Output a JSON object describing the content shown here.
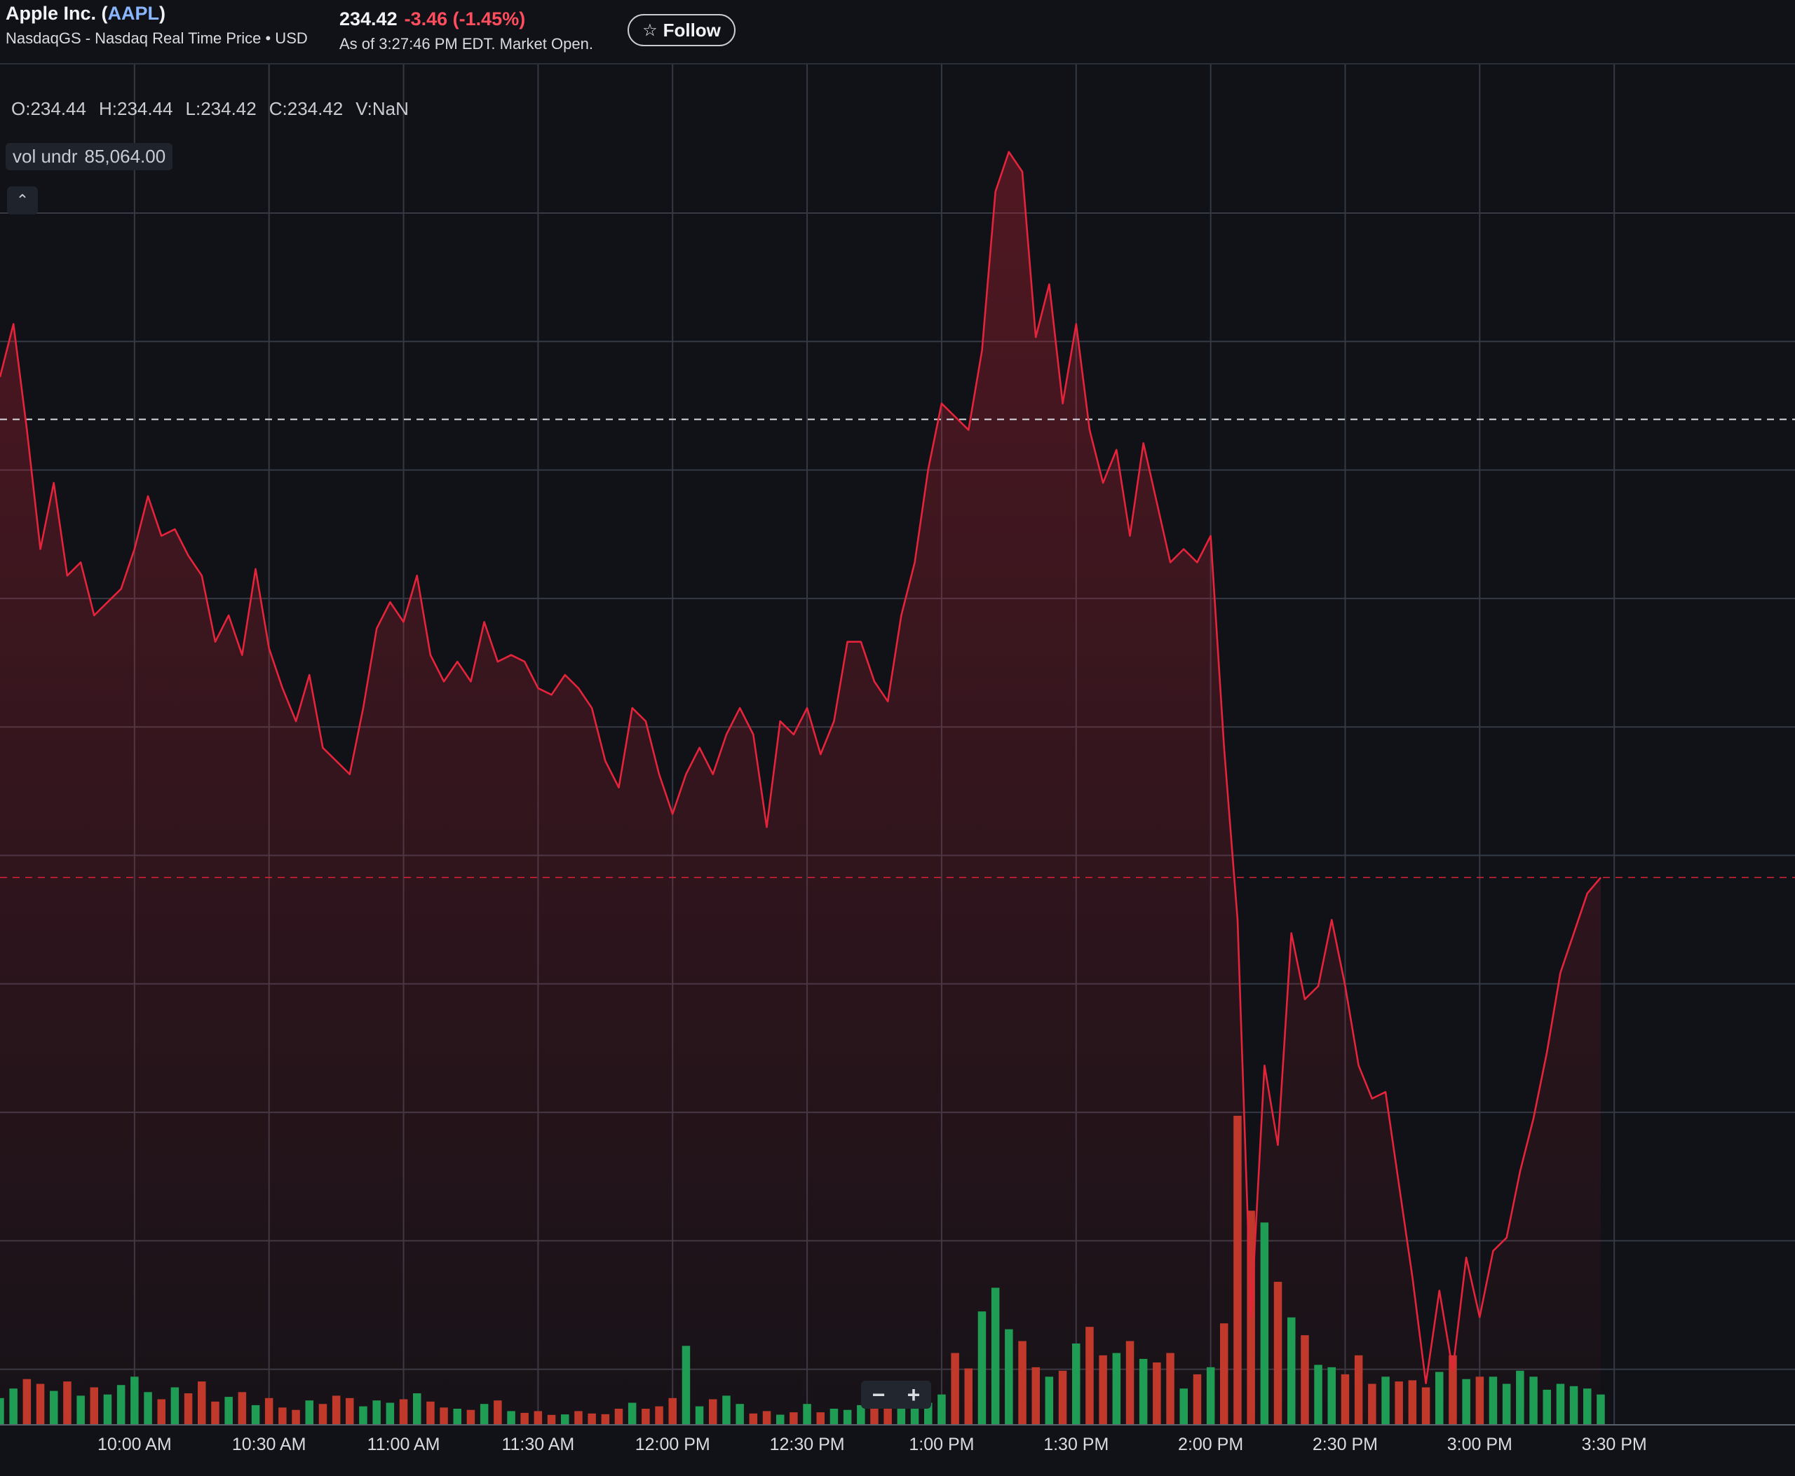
{
  "header": {
    "company_prefix": "Apple Inc. (",
    "symbol": "AAPL",
    "company_suffix": ")",
    "exchange_line": "NasdaqGS - Nasdaq Real Time Price • USD",
    "price": "234.42",
    "change": "-3.46",
    "change_pct": "(-1.45%)",
    "as_of": "As of 3:27:46 PM EDT. Market Open.",
    "follow_label": "Follow",
    "follow_icon": "star-outline-icon"
  },
  "legend": {
    "open": "O:234.44",
    "high": "H:234.44",
    "low": "L:234.42",
    "close": "C:234.42",
    "volume": "V:NaN",
    "vol_label": "vol undr",
    "vol_value": "85,064.00",
    "collapse_icon": "chevron-up-icon"
  },
  "zoom": {
    "minus": "−",
    "plus": "+"
  },
  "colors": {
    "background": "#101217",
    "price_line": "#e5243b",
    "volume_up": "#1f9d55",
    "volume_down": "#c0392b",
    "grid": "#343944",
    "prev_close_line": "#d8dbe0",
    "current_price_line": "#e5243b"
  },
  "chart_data": {
    "type": "line",
    "series": [
      {
        "time": [
          "9:30 AM",
          "9:33 AM",
          "9:36 AM",
          "9:39 AM",
          "9:42 AM",
          "9:45 AM",
          "9:48 AM",
          "9:51 AM",
          "9:54 AM",
          "9:57 AM",
          "10:00 AM",
          "10:03 AM",
          "10:06 AM",
          "10:09 AM",
          "10:12 AM",
          "10:15 AM",
          "10:18 AM",
          "10:21 AM",
          "10:24 AM",
          "10:27 AM",
          "10:30 AM",
          "10:33 AM",
          "10:36 AM",
          "10:39 AM",
          "10:42 AM",
          "10:45 AM",
          "10:48 AM",
          "10:51 AM",
          "10:54 AM",
          "10:57 AM",
          "11:00 AM",
          "11:03 AM",
          "11:06 AM",
          "11:09 AM",
          "11:12 AM",
          "11:15 AM",
          "11:18 AM",
          "11:21 AM",
          "11:24 AM",
          "11:27 AM",
          "11:30 AM",
          "11:33 AM",
          "11:36 AM",
          "11:39 AM",
          "11:42 AM",
          "11:45 AM",
          "11:48 AM",
          "11:51 AM",
          "11:54 AM",
          "11:57 AM",
          "12:00 PM",
          "12:03 PM",
          "12:06 PM",
          "12:09 PM",
          "12:12 PM",
          "12:15 PM",
          "12:18 PM",
          "12:21 PM",
          "12:24 PM",
          "12:27 PM",
          "12:30 PM",
          "12:33 PM",
          "12:36 PM",
          "12:39 PM",
          "12:42 PM",
          "12:45 PM",
          "12:48 PM",
          "12:51 PM",
          "12:54 PM",
          "12:57 PM",
          "1:00 PM",
          "1:03 PM",
          "1:06 PM",
          "1:09 PM",
          "1:12 PM",
          "1:15 PM",
          "1:18 PM",
          "1:21 PM",
          "1:24 PM",
          "1:27 PM",
          "1:30 PM",
          "1:33 PM",
          "1:36 PM",
          "1:39 PM",
          "1:42 PM",
          "1:45 PM",
          "1:48 PM",
          "1:51 PM",
          "1:54 PM",
          "1:57 PM",
          "2:00 PM",
          "2:03 PM",
          "2:06 PM",
          "2:09 PM",
          "2:12 PM",
          "2:15 PM",
          "2:18 PM",
          "2:21 PM",
          "2:24 PM",
          "2:27 PM",
          "2:30 PM",
          "2:33 PM",
          "2:36 PM",
          "2:39 PM",
          "2:42 PM",
          "2:45 PM",
          "2:48 PM",
          "2:51 PM",
          "2:54 PM",
          "2:57 PM",
          "3:00 PM",
          "3:03 PM",
          "3:06 PM",
          "3:09 PM",
          "3:12 PM",
          "3:15 PM",
          "3:18 PM",
          "3:21 PM",
          "3:24 PM",
          "3:27 PM"
        ],
        "values": [
          238.2,
          238.6,
          237.8,
          236.9,
          237.4,
          236.7,
          236.8,
          236.4,
          236.5,
          236.6,
          236.9,
          237.3,
          237.0,
          237.05,
          236.85,
          236.7,
          236.2,
          236.4,
          236.1,
          236.75,
          236.15,
          235.85,
          235.6,
          235.95,
          235.4,
          235.3,
          235.2,
          235.7,
          236.3,
          236.5,
          236.35,
          236.7,
          236.1,
          235.9,
          236.05,
          235.9,
          236.35,
          236.05,
          236.1,
          236.05,
          235.85,
          235.8,
          235.95,
          235.85,
          235.7,
          235.3,
          235.1,
          235.7,
          235.6,
          235.2,
          234.9,
          235.2,
          235.4,
          235.2,
          235.5,
          235.7,
          235.5,
          234.8,
          235.6,
          235.5,
          235.7,
          235.35,
          235.6,
          236.2,
          236.2,
          235.9,
          235.75,
          236.4,
          236.8,
          237.5,
          238.0,
          237.9,
          237.8,
          238.4,
          239.6,
          239.9,
          239.75,
          238.5,
          238.9,
          238.0,
          238.6,
          237.8,
          237.4,
          237.65,
          237.0,
          237.7,
          237.25,
          236.8,
          236.9,
          236.8,
          237.0,
          235.4,
          234.1,
          231.1,
          233.0,
          232.4,
          234.0,
          233.5,
          233.6,
          234.1,
          233.6,
          233.0,
          232.75,
          232.8,
          232.1,
          231.4,
          230.6,
          231.3,
          230.7,
          231.55,
          231.1,
          231.6,
          231.7,
          232.2,
          232.6,
          233.1,
          233.7,
          234.0,
          234.3,
          234.42
        ]
      },
      {
        "name": "Volume",
        "values": [
          22000,
          30000,
          38000,
          34000,
          28000,
          36000,
          24000,
          31000,
          25000,
          33000,
          40000,
          27000,
          21000,
          31000,
          26000,
          36000,
          19000,
          23000,
          27000,
          16000,
          22000,
          14000,
          12000,
          20000,
          17000,
          24000,
          22000,
          15000,
          20000,
          18000,
          21000,
          26000,
          19000,
          14000,
          13000,
          12000,
          17000,
          20000,
          11000,
          9500,
          11000,
          7800,
          8200,
          11000,
          9000,
          8400,
          13000,
          18000,
          13000,
          15000,
          22000,
          66000,
          15000,
          21000,
          24000,
          17000,
          9000,
          11000,
          8000,
          10000,
          17000,
          10000,
          13000,
          12000,
          16000,
          14000,
          25000,
          19000,
          20000,
          18000,
          25000,
          60000,
          47000,
          95000,
          115000,
          80000,
          70000,
          48000,
          40000,
          45000,
          68000,
          82000,
          58000,
          60000,
          70000,
          55000,
          52000,
          60000,
          30000,
          42000,
          48000,
          85000,
          260000,
          180000,
          170000,
          120000,
          90000,
          75000,
          50000,
          48000,
          42000,
          58000,
          34000,
          40000,
          36000,
          37000,
          31000,
          44000,
          58000,
          38000,
          40000,
          40000,
          34000,
          45000,
          40000,
          29000,
          34000,
          32000,
          30000,
          25000
        ]
      }
    ],
    "x_ticks": [
      "10:00 AM",
      "10:30 AM",
      "11:00 AM",
      "11:30 AM",
      "12:00 PM",
      "12:30 PM",
      "1:00 PM",
      "1:30 PM",
      "2:00 PM",
      "2:30 PM",
      "3:00 PM",
      "3:30 PM"
    ],
    "x_range": [
      "9:30 AM",
      "4:00 PM"
    ],
    "previous_close": 237.88,
    "current_price": 234.42,
    "grid": true
  }
}
